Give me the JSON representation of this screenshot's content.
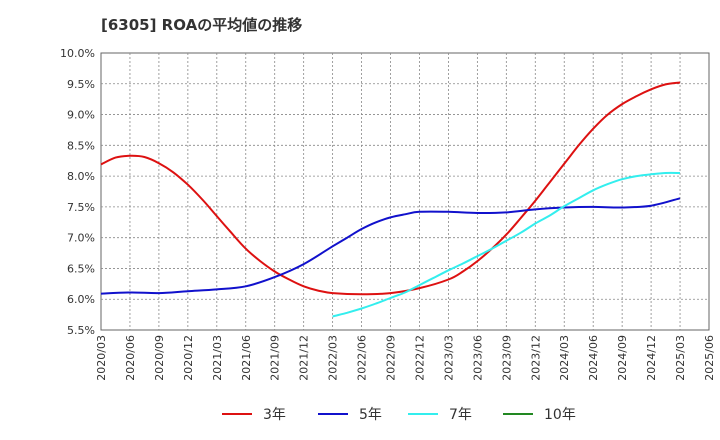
{
  "title": "[6305]  ROAの平均値の推移",
  "chart_data": {
    "type": "line",
    "title": "[6305]  ROAの平均値の推移",
    "xlabel": "",
    "ylabel": "",
    "x_ticks": [
      "2020/03",
      "2020/06",
      "2020/09",
      "2020/12",
      "2021/03",
      "2021/06",
      "2021/09",
      "2021/12",
      "2022/03",
      "2022/06",
      "2022/09",
      "2022/12",
      "2023/03",
      "2023/06",
      "2023/09",
      "2023/12",
      "2024/03",
      "2024/06",
      "2024/09",
      "2024/12",
      "2025/03",
      "2025/06"
    ],
    "y_ticks": [
      "5.5%",
      "6.0%",
      "6.5%",
      "7.0%",
      "7.5%",
      "8.0%",
      "8.5%",
      "9.0%",
      "9.5%",
      "10.0%"
    ],
    "ylim": [
      5.5,
      10.0
    ],
    "grid": true,
    "legend_position": "bottom",
    "series": [
      {
        "name": "3年",
        "color": "#dd1111",
        "points": [
          [
            0,
            8.19
          ],
          [
            0.5,
            8.3
          ],
          [
            1,
            8.33
          ],
          [
            1.5,
            8.31
          ],
          [
            2,
            8.21
          ],
          [
            2.5,
            8.06
          ],
          [
            3,
            7.86
          ],
          [
            3.5,
            7.62
          ],
          [
            4,
            7.35
          ],
          [
            4.5,
            7.08
          ],
          [
            5,
            6.82
          ],
          [
            5.5,
            6.62
          ],
          [
            6,
            6.45
          ],
          [
            6.5,
            6.32
          ],
          [
            7,
            6.21
          ],
          [
            7.5,
            6.14
          ],
          [
            8,
            6.1
          ],
          [
            9,
            6.08
          ],
          [
            10,
            6.1
          ],
          [
            11,
            6.18
          ],
          [
            12,
            6.32
          ],
          [
            12.5,
            6.45
          ],
          [
            13,
            6.62
          ],
          [
            13.5,
            6.82
          ],
          [
            14,
            7.05
          ],
          [
            14.5,
            7.32
          ],
          [
            15,
            7.6
          ],
          [
            15.5,
            7.9
          ],
          [
            16,
            8.2
          ],
          [
            16.5,
            8.5
          ],
          [
            17,
            8.77
          ],
          [
            17.5,
            9.0
          ],
          [
            18,
            9.17
          ],
          [
            18.5,
            9.3
          ],
          [
            19,
            9.41
          ],
          [
            19.5,
            9.49
          ],
          [
            20,
            9.52
          ]
        ]
      },
      {
        "name": "5年",
        "color": "#1111cc",
        "points": [
          [
            0,
            6.09
          ],
          [
            1,
            6.11
          ],
          [
            2,
            6.1
          ],
          [
            3,
            6.13
          ],
          [
            4,
            6.16
          ],
          [
            5,
            6.21
          ],
          [
            6,
            6.36
          ],
          [
            7,
            6.57
          ],
          [
            8,
            6.86
          ],
          [
            8.5,
            7.0
          ],
          [
            9,
            7.14
          ],
          [
            9.5,
            7.25
          ],
          [
            10,
            7.33
          ],
          [
            10.5,
            7.38
          ],
          [
            11,
            7.42
          ],
          [
            12,
            7.42
          ],
          [
            13,
            7.4
          ],
          [
            14,
            7.41
          ],
          [
            15,
            7.46
          ],
          [
            16,
            7.49
          ],
          [
            17,
            7.5
          ],
          [
            18,
            7.49
          ],
          [
            19,
            7.52
          ],
          [
            20,
            7.64
          ]
        ]
      },
      {
        "name": "7年",
        "color": "#33eeee",
        "points": [
          [
            8,
            5.72
          ],
          [
            8.5,
            5.78
          ],
          [
            9,
            5.85
          ],
          [
            9.5,
            5.93
          ],
          [
            10,
            6.02
          ],
          [
            10.5,
            6.11
          ],
          [
            11,
            6.23
          ],
          [
            11.5,
            6.35
          ],
          [
            12,
            6.47
          ],
          [
            12.5,
            6.58
          ],
          [
            13,
            6.7
          ],
          [
            13.5,
            6.82
          ],
          [
            14,
            6.95
          ],
          [
            14.5,
            7.08
          ],
          [
            15,
            7.23
          ],
          [
            15.5,
            7.36
          ],
          [
            16,
            7.51
          ],
          [
            16.5,
            7.64
          ],
          [
            17,
            7.77
          ],
          [
            17.5,
            7.87
          ],
          [
            18,
            7.95
          ],
          [
            18.5,
            8.0
          ],
          [
            19,
            8.03
          ],
          [
            19.5,
            8.05
          ],
          [
            20,
            8.05
          ]
        ]
      },
      {
        "name": "10年",
        "color": "#228822",
        "points": []
      }
    ]
  }
}
